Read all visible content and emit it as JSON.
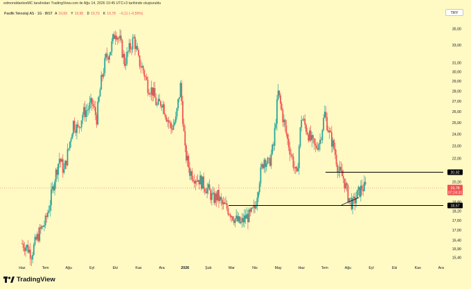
{
  "header": {
    "note": "edmonddantesMC tarafından TradingView.com ile Ağu 14, 2026 10:45 UTC+3 tarihinde oluşturuldu",
    "symbol": "Pasifik Teknoloji AS · 1G · BIST",
    "ohlc": [
      {
        "label": "A",
        "value": "19,69"
      },
      {
        "label": "Y",
        "value": "19,98"
      },
      {
        "label": "D",
        "value": "19,70"
      },
      {
        "label": "K",
        "value": "19,78"
      }
    ],
    "change": "−0,11 (−0,55%)",
    "currency": "TRY"
  },
  "price_tags": {
    "upper_line": "20,92",
    "last": "19,78",
    "countdown": "07:24:31",
    "lower_line": "18,57"
  },
  "footer": {
    "logo_text": "TradingView"
  },
  "colors": {
    "background": "#fff9c4",
    "up": "#26a69a",
    "down": "#ef5350",
    "line": "#000000"
  },
  "icons": {
    "logo": "tradingview-logo-icon"
  },
  "chart_data": {
    "type": "candlestick",
    "y_scale": "log",
    "ylim": [
      15.2,
      36.2
    ],
    "y_ticks": [
      "35,00",
      "33,00",
      "31,00",
      "30,00",
      "29,00",
      "28,00",
      "27,00",
      "26,00",
      "25,00",
      "24,00",
      "23,00",
      "22,00",
      "21,00",
      "20,20",
      "19,40",
      "18,80",
      "18,20",
      "17,60",
      "17,00",
      "16,40",
      "15,90",
      "15,40"
    ],
    "x_ticks": [
      "Haz",
      "Tem",
      "Ağu",
      "Eyl",
      "Eki",
      "Kas",
      "Ara",
      "2026",
      "Şub",
      "Mar",
      "Nis",
      "May",
      "Haz",
      "Tem",
      "Ağu",
      "Eyl",
      "Eki",
      "Kas",
      "Ara"
    ],
    "horizontal_lines": [
      20.92,
      18.57
    ],
    "trendline": {
      "from": {
        "x": "Ağu",
        "y": 18.6
      },
      "to": {
        "x": "Ağu",
        "y": 19.1
      }
    },
    "series": [
      {
        "segment": "Haz",
        "values": [
          16.2,
          16.0,
          15.6,
          16.4,
          17.0
        ]
      },
      {
        "segment": "Tem",
        "values": [
          17.5,
          18.8,
          20.5,
          22.0,
          21.0
        ]
      },
      {
        "segment": "Ağu",
        "values": [
          22.8,
          25.0,
          24.4,
          25.8,
          26.2
        ]
      },
      {
        "segment": "Eyl",
        "values": [
          26.8,
          25.4,
          29.0,
          31.5,
          32.5
        ]
      },
      {
        "segment": "Eki",
        "values": [
          34.8,
          33.5,
          31.0,
          32.5,
          33.8
        ]
      },
      {
        "segment": "Kas",
        "values": [
          31.2,
          30.2,
          28.5,
          28.0,
          26.5
        ]
      },
      {
        "segment": "Ara",
        "values": [
          27.0,
          25.6,
          24.5,
          25.2,
          28.5
        ]
      },
      {
        "segment": "2026",
        "values": [
          22.5,
          21.0,
          20.6,
          20.4,
          20.0
        ]
      },
      {
        "segment": "Şub",
        "values": [
          19.6,
          19.0,
          19.2,
          18.6,
          18.4
        ]
      },
      {
        "segment": "Mar",
        "values": [
          18.0,
          17.6,
          17.4,
          17.8,
          17.9
        ]
      },
      {
        "segment": "Nis",
        "values": [
          18.4,
          20.5,
          22.0,
          21.5,
          23.0
        ]
      },
      {
        "segment": "May",
        "values": [
          27.8,
          25.5,
          23.5,
          22.0,
          20.5
        ]
      },
      {
        "segment": "Haz",
        "values": [
          25.5,
          24.5,
          23.5,
          22.8,
          23.5
        ]
      },
      {
        "segment": "Tem",
        "values": [
          25.8,
          24.0,
          22.8,
          21.0,
          20.5
        ]
      },
      {
        "segment": "Ağu",
        "values": [
          19.2,
          18.6,
          19.3,
          19.8,
          19.78
        ]
      }
    ]
  }
}
